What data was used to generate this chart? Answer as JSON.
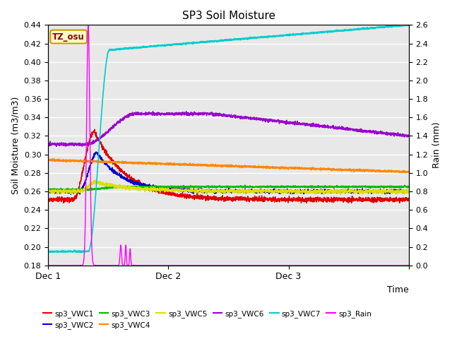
{
  "title": "SP3 Soil Moisture",
  "ylabel_left": "Soil Moisture (m3/m3)",
  "ylabel_right": "Rain (mm)",
  "xlabel": "Time",
  "xlim": [
    0,
    2880
  ],
  "ylim_left": [
    0.18,
    0.44
  ],
  "ylim_right": [
    0.0,
    2.6
  ],
  "xtick_positions": [
    0,
    960,
    1920,
    2880
  ],
  "xtick_labels": [
    "Dec 1",
    "Dec 2",
    "Dec 3",
    ""
  ],
  "ytick_left": [
    0.18,
    0.2,
    0.22,
    0.24,
    0.26,
    0.28,
    0.3,
    0.32,
    0.34,
    0.36,
    0.38,
    0.4,
    0.42,
    0.44
  ],
  "ytick_right": [
    0.0,
    0.2,
    0.4,
    0.6,
    0.8,
    1.0,
    1.2,
    1.4,
    1.6,
    1.8,
    2.0,
    2.2,
    2.4,
    2.6
  ],
  "bg_color": "#e8e8e8",
  "colors": {
    "sp3_VWC1": "#dd0000",
    "sp3_VWC2": "#0000cc",
    "sp3_VWC3": "#00bb00",
    "sp3_VWC4": "#ff8800",
    "sp3_VWC5": "#dddd00",
    "sp3_VWC6": "#9900cc",
    "sp3_VWC7": "#00cccc",
    "sp3_Rain": "#ff00ff"
  },
  "annotation_text": "TZ_osu",
  "annotation_color": "#8b0000",
  "annotation_bg": "#ffffcc",
  "annotation_border": "#cc9900"
}
